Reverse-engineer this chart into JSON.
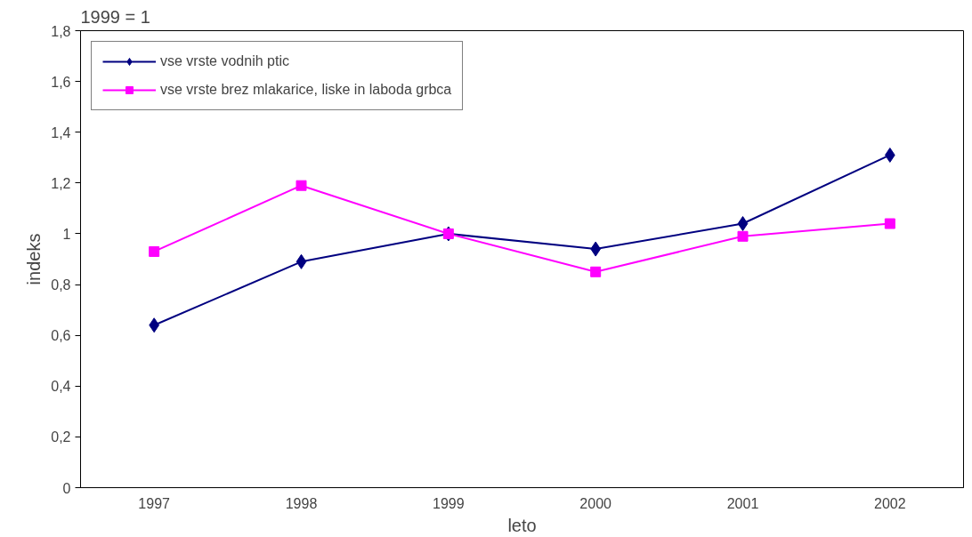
{
  "chart_data": {
    "type": "line",
    "annotations": [
      "1999 = 1"
    ],
    "xlabel": "leto",
    "ylabel": "indeks",
    "categories": [
      "1997",
      "1998",
      "1999",
      "2000",
      "2001",
      "2002"
    ],
    "series": [
      {
        "name": "vse vrste vodnih ptic",
        "color": "#000080",
        "marker": "diamond",
        "values": [
          0.64,
          0.89,
          1.0,
          0.94,
          1.04,
          1.31
        ]
      },
      {
        "name": "vse vrste brez mlakarice, liske in laboda grbca",
        "color": "#ff00ff",
        "marker": "square",
        "values": [
          0.93,
          1.19,
          1.0,
          0.85,
          0.99,
          1.04
        ]
      }
    ],
    "ylim": [
      0,
      1.8
    ],
    "yticks": [
      0,
      {
        "value": 0.2,
        "label": "0,2"
      },
      {
        "value": 0.4,
        "label": "0,4"
      },
      {
        "value": 0.6,
        "label": "0,6"
      },
      {
        "value": 0.8,
        "label": "0,8"
      },
      1,
      {
        "value": 1.2,
        "label": "1,2"
      },
      {
        "value": 1.4,
        "label": "1,4"
      },
      {
        "value": 1.6,
        "label": "1,6"
      },
      {
        "value": 1.8,
        "label": "1,8"
      }
    ],
    "grid": false,
    "legend": "top left",
    "line_style": "solid"
  }
}
